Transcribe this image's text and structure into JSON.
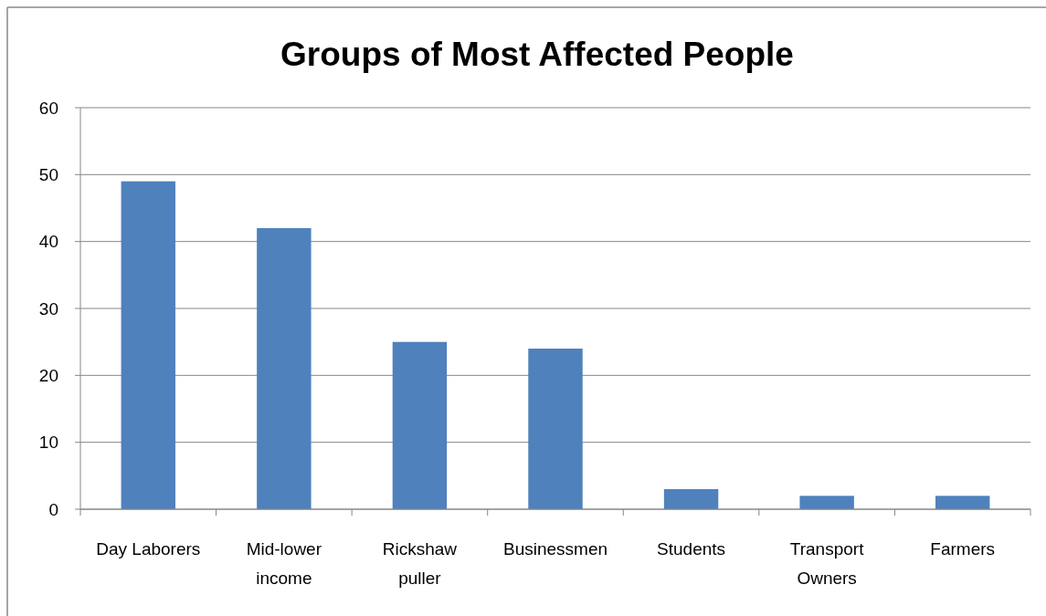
{
  "chart_data": {
    "type": "bar",
    "title": "Groups of Most Affected People",
    "categories": [
      "Day Laborers",
      "Mid-lower income",
      "Rickshaw puller",
      "Businessmen",
      "Students",
      "Transport Owners",
      "Farmers"
    ],
    "values": [
      49,
      42,
      25,
      24,
      3,
      2,
      2
    ],
    "color": "#4f81bd",
    "ylim": [
      0,
      60
    ],
    "yticks": [
      0,
      10,
      20,
      30,
      40,
      50,
      60
    ],
    "grid": "y"
  }
}
